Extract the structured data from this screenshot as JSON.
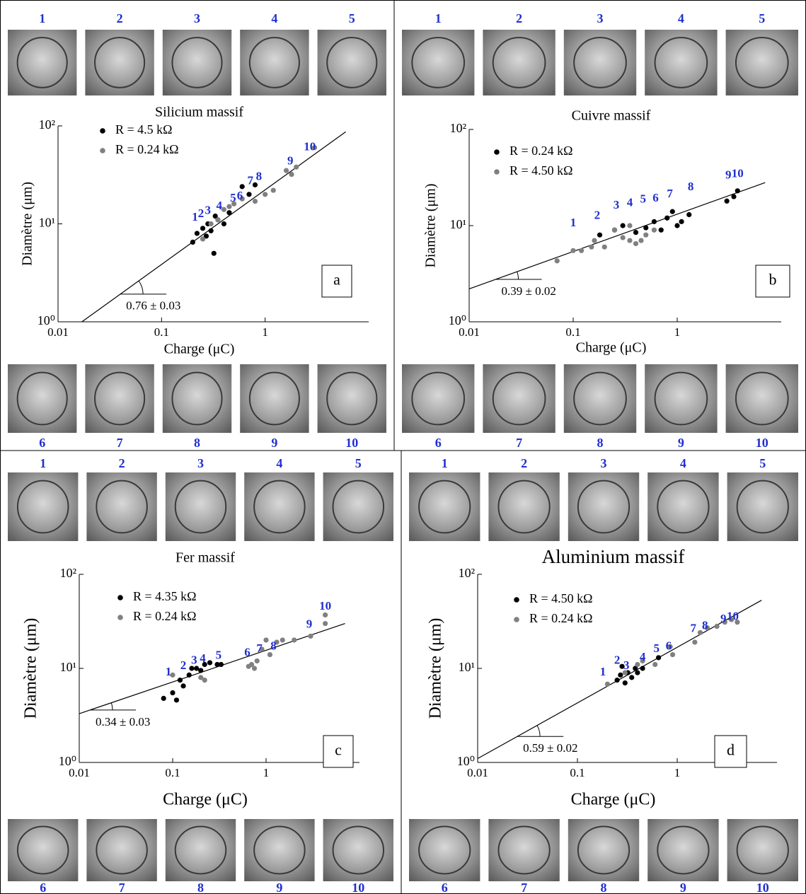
{
  "chart_data": [
    {
      "type": "scatter",
      "title": "Silicium massif",
      "x_label": "Charge (μC)",
      "y_label": "Diamètre (μm)",
      "xscale": "log",
      "yscale": "log",
      "xlim": [
        0.01,
        10
      ],
      "ylim": [
        1,
        100
      ],
      "xticks": [
        0.01,
        0.1,
        1
      ],
      "yticks": [
        {
          "value": 1,
          "label": "10⁰"
        },
        {
          "value": 10,
          "label": "10¹"
        },
        {
          "value": 100,
          "label": "10²"
        }
      ],
      "legend": "upper left",
      "panel_label": "a",
      "series": [
        {
          "name": "R = 4.5 kΩ",
          "color": "#000000",
          "x": [
            0.2,
            0.22,
            0.25,
            0.27,
            0.28,
            0.3,
            0.32,
            0.33,
            0.35,
            0.4,
            0.45,
            0.6,
            0.8,
            0.7
          ],
          "values": [
            6.5,
            8,
            9,
            7.5,
            10,
            8.5,
            5,
            12,
            11,
            10,
            13,
            24,
            25,
            20
          ]
        },
        {
          "name": "R = 0.24 kΩ",
          "color": "#808080",
          "x": [
            0.25,
            0.3,
            0.35,
            0.4,
            0.45,
            0.5,
            0.6,
            0.8,
            1,
            1.2,
            1.6,
            1.8,
            2,
            3
          ],
          "values": [
            7,
            10,
            11,
            14,
            15,
            16,
            18,
            17,
            20,
            22,
            35,
            32,
            38,
            60
          ]
        }
      ],
      "fit": {
        "label": "0.76 ± 0.03",
        "x": [
          0.017,
          6
        ],
        "values": [
          1,
          87
        ]
      },
      "annotations": [
        {
          "text": "1",
          "x": 0.21,
          "y": 11.5
        },
        {
          "text": "2",
          "x": 0.24,
          "y": 12.5
        },
        {
          "text": "3",
          "x": 0.28,
          "y": 13.5
        },
        {
          "text": "4",
          "x": 0.36,
          "y": 15
        },
        {
          "text": "5",
          "x": 0.49,
          "y": 18
        },
        {
          "text": "6",
          "x": 0.57,
          "y": 19
        },
        {
          "text": "7",
          "x": 0.72,
          "y": 27
        },
        {
          "text": "8",
          "x": 0.87,
          "y": 30
        },
        {
          "text": "9",
          "x": 1.75,
          "y": 43
        },
        {
          "text": "10",
          "x": 2.7,
          "y": 60
        }
      ],
      "image_labels_top": [
        "1",
        "2",
        "3",
        "4",
        "5"
      ],
      "image_labels_bottom": [
        "6",
        "7",
        "8",
        "9",
        "10"
      ]
    },
    {
      "type": "scatter",
      "title": "Cuivre massif",
      "x_label": "Charge (μC)",
      "y_label": "Diamètre (μm)",
      "xscale": "log",
      "yscale": "log",
      "xlim": [
        0.01,
        10
      ],
      "ylim": [
        1,
        100
      ],
      "xticks": [
        0.01,
        0.1,
        1
      ],
      "yticks": [
        {
          "value": 1,
          "label": "10⁰"
        },
        {
          "value": 10,
          "label": "10¹"
        },
        {
          "value": 100,
          "label": "10²"
        }
      ],
      "legend": "upper left",
      "panel_label": "b",
      "series": [
        {
          "name": "R = 0.24 kΩ",
          "color": "#000000",
          "x": [
            0.18,
            0.25,
            0.3,
            0.4,
            0.5,
            0.6,
            0.7,
            0.8,
            0.9,
            1,
            1.1,
            1.3,
            3,
            3.5,
            3.8
          ],
          "values": [
            8,
            9,
            10,
            8.5,
            9.5,
            11,
            9,
            12,
            14,
            10,
            11,
            13,
            18,
            20,
            23
          ]
        },
        {
          "name": "R = 4.50 kΩ",
          "color": "#808080",
          "x": [
            0.07,
            0.1,
            0.12,
            0.15,
            0.16,
            0.2,
            0.25,
            0.3,
            0.35,
            0.4,
            0.45,
            0.5,
            0.6,
            0.35
          ],
          "values": [
            4.3,
            5.5,
            5.5,
            6,
            7,
            6,
            9,
            7.5,
            7,
            6.5,
            7,
            8,
            9,
            10
          ]
        }
      ],
      "fit": {
        "label": "0.39 ± 0.02",
        "x": [
          0.01,
          7
        ],
        "values": [
          2.2,
          28
        ]
      },
      "annotations": [
        {
          "text": "1",
          "x": 0.1,
          "y": 10.5
        },
        {
          "text": "2",
          "x": 0.17,
          "y": 12.5
        },
        {
          "text": "3",
          "x": 0.26,
          "y": 16
        },
        {
          "text": "4",
          "x": 0.35,
          "y": 17
        },
        {
          "text": "5",
          "x": 0.47,
          "y": 18.5
        },
        {
          "text": "6",
          "x": 0.62,
          "y": 19
        },
        {
          "text": "7",
          "x": 0.85,
          "y": 21
        },
        {
          "text": "8",
          "x": 1.35,
          "y": 25
        },
        {
          "text": "9",
          "x": 3.1,
          "y": 33
        },
        {
          "text": "10",
          "x": 3.8,
          "y": 34
        }
      ],
      "image_labels_top": [
        "1",
        "2",
        "3",
        "4",
        "5"
      ],
      "image_labels_bottom": [
        "6",
        "7",
        "8",
        "9",
        "10"
      ]
    },
    {
      "type": "scatter",
      "title": "Fer massif",
      "x_label": "Charge (μC)",
      "y_label": "Diamètre (μm)",
      "xscale": "log",
      "yscale": "log",
      "xlim": [
        0.01,
        10
      ],
      "ylim": [
        1,
        100
      ],
      "xticks": [
        0.01,
        0.1,
        1
      ],
      "yticks": [
        {
          "value": 1,
          "label": "10⁰"
        },
        {
          "value": 10,
          "label": "10¹"
        },
        {
          "value": 100,
          "label": "10²"
        }
      ],
      "legend": "upper left",
      "panel_label": "c",
      "series": [
        {
          "name": "R = 4.35 kΩ",
          "color": "#000000",
          "x": [
            0.08,
            0.1,
            0.11,
            0.12,
            0.13,
            0.15,
            0.16,
            0.18,
            0.2,
            0.22,
            0.25,
            0.3,
            0.33
          ],
          "values": [
            4.8,
            5.5,
            4.6,
            7.5,
            6.5,
            8.5,
            10,
            10,
            9.5,
            11,
            11.5,
            11,
            11
          ]
        },
        {
          "name": "R = 0.24 kΩ",
          "color": "#808080",
          "x": [
            0.1,
            0.2,
            0.22,
            0.65,
            0.7,
            0.75,
            0.8,
            0.9,
            1,
            1.1,
            1.3,
            1.5,
            2,
            3,
            4.3,
            4.3
          ],
          "values": [
            8.5,
            8,
            7.5,
            10.5,
            11,
            10,
            12,
            16,
            20,
            14,
            19,
            20,
            20,
            22,
            30,
            37
          ]
        }
      ],
      "fit": {
        "label": "0.34 ± 0.03",
        "x": [
          0.01,
          7
        ],
        "values": [
          3.3,
          30
        ]
      },
      "annotations": [
        {
          "text": "1",
          "x": 0.09,
          "y": 9
        },
        {
          "text": "2",
          "x": 0.13,
          "y": 10.5
        },
        {
          "text": "3",
          "x": 0.17,
          "y": 12
        },
        {
          "text": "4",
          "x": 0.21,
          "y": 12.5
        },
        {
          "text": "5",
          "x": 0.31,
          "y": 13.5
        },
        {
          "text": "6",
          "x": 0.63,
          "y": 14.5
        },
        {
          "text": "7",
          "x": 0.85,
          "y": 16
        },
        {
          "text": "8",
          "x": 1.2,
          "y": 17
        },
        {
          "text": "9",
          "x": 2.9,
          "y": 29
        },
        {
          "text": "10",
          "x": 4.3,
          "y": 45
        }
      ],
      "image_labels_top": [
        "1",
        "2",
        "3",
        "4",
        "5"
      ],
      "image_labels_bottom": [
        "6",
        "7",
        "8",
        "9",
        "10"
      ]
    },
    {
      "type": "scatter",
      "title": "Aluminium massif",
      "x_label": "Charge (μC)",
      "y_label": "Diamètre (μm)",
      "xscale": "log",
      "yscale": "log",
      "xlim": [
        0.01,
        10
      ],
      "ylim": [
        1,
        100
      ],
      "xticks": [
        0.01,
        0.1,
        1
      ],
      "yticks": [
        {
          "value": 1,
          "label": "10⁰"
        },
        {
          "value": 10,
          "label": "10¹"
        },
        {
          "value": 100,
          "label": "10²"
        }
      ],
      "legend": "upper left",
      "panel_label": "d",
      "series": [
        {
          "name": "R = 4.50 kΩ",
          "color": "#000000",
          "x": [
            0.25,
            0.27,
            0.3,
            0.32,
            0.35,
            0.38,
            0.4,
            0.45,
            0.65,
            0.28
          ],
          "values": [
            7.5,
            8.5,
            7,
            9,
            8,
            10,
            9,
            10,
            13,
            10.5
          ]
        },
        {
          "name": "R = 0.24 kΩ",
          "color": "#808080",
          "x": [
            0.2,
            0.3,
            0.4,
            0.45,
            0.6,
            0.85,
            0.9,
            1.5,
            1.7,
            2,
            2.5,
            3,
            3.5,
            4
          ],
          "values": [
            6.8,
            9,
            11,
            12,
            11,
            17,
            14,
            19,
            24,
            27,
            28,
            31,
            33,
            31
          ]
        }
      ],
      "fit": {
        "label": "0.59 ± 0.02",
        "x": [
          0.01,
          7
        ],
        "values": [
          1.1,
          53
        ]
      },
      "annotations": [
        {
          "text": "1",
          "x": 0.18,
          "y": 9
        },
        {
          "text": "2",
          "x": 0.25,
          "y": 12
        },
        {
          "text": "3",
          "x": 0.31,
          "y": 10.5
        },
        {
          "text": "4",
          "x": 0.45,
          "y": 13
        },
        {
          "text": "5",
          "x": 0.62,
          "y": 16
        },
        {
          "text": "6",
          "x": 0.82,
          "y": 17
        },
        {
          "text": "7",
          "x": 1.45,
          "y": 26
        },
        {
          "text": "8",
          "x": 1.9,
          "y": 28
        },
        {
          "text": "9",
          "x": 2.9,
          "y": 33
        },
        {
          "text": "10",
          "x": 3.6,
          "y": 35
        }
      ],
      "image_labels_top": [
        "1",
        "2",
        "3",
        "4",
        "5"
      ],
      "image_labels_bottom": [
        "6",
        "7",
        "8",
        "9",
        "10"
      ]
    }
  ]
}
